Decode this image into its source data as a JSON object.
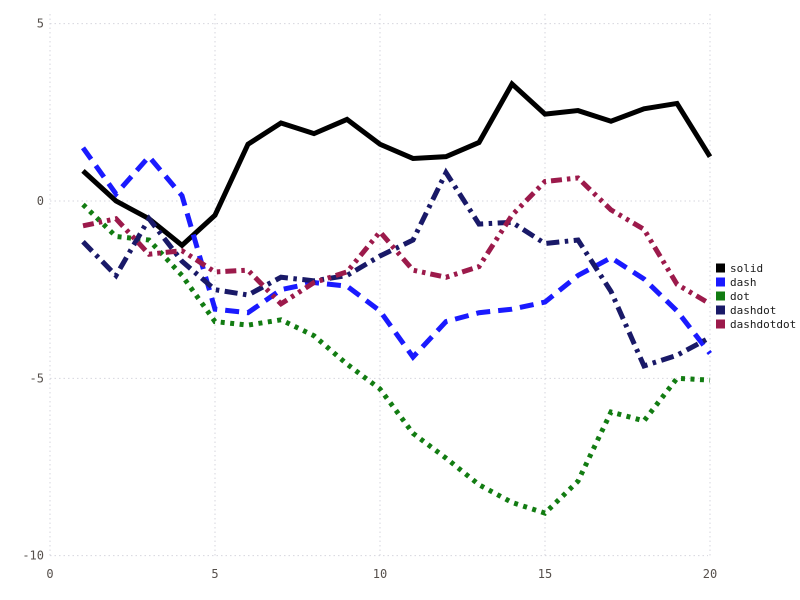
{
  "chart_data": {
    "type": "line",
    "title": "",
    "xlabel": "",
    "ylabel": "",
    "xlim": [
      0,
      20
    ],
    "ylim": [
      -10,
      5
    ],
    "xticks": [
      "0",
      "5",
      "10",
      "15",
      "20"
    ],
    "xtick_values": [
      0,
      5,
      10,
      15,
      20
    ],
    "yticks": [
      "5",
      "0",
      "-5",
      "-10"
    ],
    "ytick_values": [
      5,
      0,
      -5,
      -10
    ],
    "grid": "dotted",
    "legend_position": "right",
    "x": [
      1,
      2,
      3,
      4,
      5,
      6,
      7,
      8,
      9,
      10,
      11,
      12,
      13,
      14,
      15,
      16,
      17,
      18,
      19,
      20
    ],
    "series": [
      {
        "name": "solid",
        "line_style": "solid",
        "color": "#000000",
        "values": [
          0.85,
          0.0,
          -0.5,
          -1.25,
          -0.4,
          1.6,
          2.2,
          1.9,
          2.3,
          1.6,
          1.2,
          1.25,
          1.65,
          3.3,
          2.45,
          2.55,
          2.25,
          2.6,
          2.75,
          1.25
        ]
      },
      {
        "name": "dash",
        "line_style": "dash",
        "color": "#1a1aff",
        "values": [
          1.5,
          0.2,
          1.25,
          0.15,
          -3.05,
          -3.15,
          -2.5,
          -2.3,
          -2.4,
          -3.1,
          -4.4,
          -3.4,
          -3.15,
          -3.05,
          -2.85,
          -2.1,
          -1.6,
          -2.2,
          -3.1,
          -4.3
        ]
      },
      {
        "name": "dot",
        "line_style": "dot",
        "color": "#127c12",
        "values": [
          -0.1,
          -1.0,
          -1.1,
          -2.1,
          -3.4,
          -3.5,
          -3.35,
          -3.8,
          -4.6,
          -5.3,
          -6.55,
          -7.25,
          -8.0,
          -8.5,
          -8.8,
          -7.9,
          -5.95,
          -6.2,
          -5.0,
          -5.05
        ]
      },
      {
        "name": "dashdot",
        "line_style": "dashdot",
        "color": "#191968",
        "values": [
          -1.15,
          -2.1,
          -0.5,
          -1.7,
          -2.5,
          -2.65,
          -2.15,
          -2.25,
          -2.1,
          -1.55,
          -1.1,
          0.8,
          -0.65,
          -0.6,
          -1.2,
          -1.1,
          -2.55,
          -4.65,
          -4.35,
          -3.85
        ]
      },
      {
        "name": "dashdotdot",
        "line_style": "dashdotdot",
        "color": "#9c1a4b",
        "values": [
          -0.7,
          -0.5,
          -1.5,
          -1.4,
          -2.0,
          -1.95,
          -2.9,
          -2.3,
          -2.0,
          -0.87,
          -1.95,
          -2.15,
          -1.85,
          -0.4,
          0.55,
          0.65,
          -0.25,
          -0.8,
          -2.35,
          -2.9
        ]
      }
    ]
  },
  "legend": {
    "entries": [
      "solid",
      "dash",
      "dot",
      "dashdot",
      "dashdotdot"
    ]
  },
  "colors": {
    "background": "#ffffff",
    "grid": "#d6d6de",
    "tick_label": "#56504c",
    "legend_text": "#1a1a1a"
  }
}
